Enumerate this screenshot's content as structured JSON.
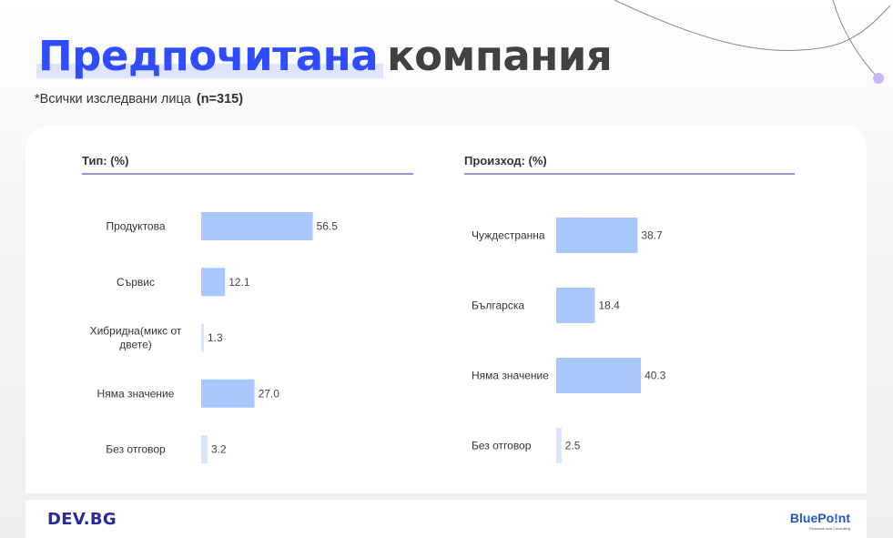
{
  "header": {
    "title_highlight": "Предпочитана",
    "title_rest": "компания",
    "subtitle": "*Всички изследвани лица",
    "subtitle_bold": "(n=315)"
  },
  "colors": {
    "bar": "#a8c8fc",
    "bar_light": "#d6e6fe",
    "accent": "#2f4cff",
    "rule": "#8f9ac9"
  },
  "chart_data": [
    {
      "type": "bar",
      "orientation": "horizontal",
      "title": "Тип: (%)",
      "categories": [
        "Продуктова",
        "Сървис",
        "Хибридна(микс от двете)",
        "Няма значение",
        "Без отговор"
      ],
      "values": [
        56.5,
        12.1,
        1.3,
        27.0,
        3.2
      ],
      "value_labels": [
        "56.5",
        "12.1",
        "1.3",
        "27.0",
        "3.2"
      ],
      "xlim": [
        0,
        100
      ],
      "grid": false,
      "legend": "none"
    },
    {
      "type": "bar",
      "orientation": "horizontal",
      "title": "Произход: (%)",
      "categories": [
        "Чуждестранна",
        "Българска",
        "Няма значение",
        "Без отговор"
      ],
      "values": [
        38.7,
        18.4,
        40.3,
        2.5
      ],
      "value_labels": [
        "38.7",
        "18.4",
        "40.3",
        "2.5"
      ],
      "xlim": [
        0,
        100
      ],
      "grid": false,
      "legend": "none"
    }
  ],
  "footer": {
    "left_logo": "DEV.BG",
    "right_logo": "BluePo!nt",
    "right_logo_tagline": "Research and Consulting"
  }
}
